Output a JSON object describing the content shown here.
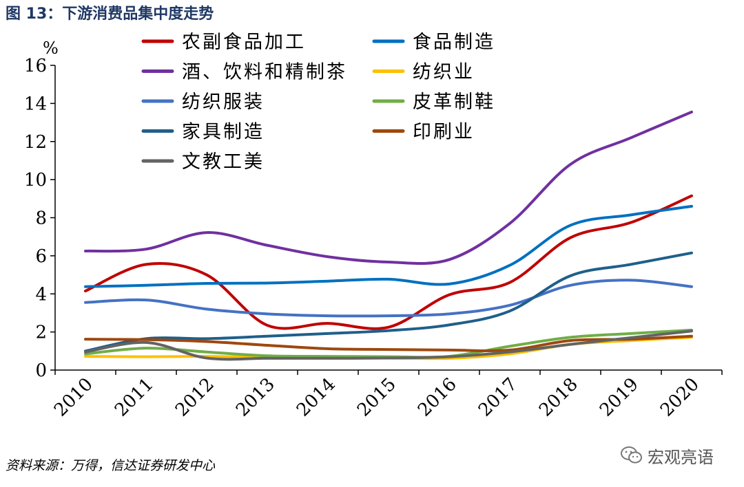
{
  "title": "图 13：下游消费品集中度走势",
  "source": "资料来源：万得，信达证券研发中心",
  "watermark": "宏观亮语",
  "chart_data": {
    "type": "line",
    "ylabel": "%",
    "ylim": [
      0,
      16
    ],
    "yticks": [
      0,
      2,
      4,
      6,
      8,
      10,
      12,
      14,
      16
    ],
    "x": [
      "2010",
      "2011",
      "2012",
      "2013",
      "2014",
      "2015",
      "2016",
      "2017",
      "2018",
      "2019",
      "2020"
    ],
    "grid": false,
    "legend_position": "top",
    "series": [
      {
        "name": "农副食品加工",
        "color": "#c00000",
        "values": [
          4.15,
          5.55,
          5.0,
          2.35,
          2.45,
          2.25,
          3.95,
          4.6,
          6.95,
          7.75,
          9.15
        ]
      },
      {
        "name": "食品制造",
        "color": "#0070c0",
        "values": [
          4.38,
          4.45,
          4.55,
          4.57,
          4.67,
          4.77,
          4.52,
          5.5,
          7.6,
          8.15,
          8.6
        ]
      },
      {
        "name": "酒、饮料和精制茶",
        "color": "#7030a0",
        "values": [
          6.25,
          6.35,
          7.22,
          6.55,
          5.95,
          5.67,
          5.8,
          7.7,
          10.8,
          12.2,
          13.55
        ]
      },
      {
        "name": "纺织业",
        "color": "#ffc000",
        "values": [
          0.72,
          0.7,
          0.72,
          0.68,
          0.65,
          0.63,
          0.62,
          0.85,
          1.35,
          1.55,
          1.72
        ]
      },
      {
        "name": "纺织服装",
        "color": "#4472c4",
        "values": [
          3.55,
          3.68,
          3.2,
          2.95,
          2.85,
          2.85,
          2.95,
          3.4,
          4.45,
          4.72,
          4.38
        ]
      },
      {
        "name": "皮革制鞋",
        "color": "#70ad47",
        "values": [
          0.85,
          1.15,
          0.95,
          0.75,
          0.72,
          0.7,
          0.72,
          1.25,
          1.72,
          1.92,
          2.1
        ]
      },
      {
        "name": "家具制造",
        "color": "#1f5f8b",
        "values": [
          1.0,
          1.65,
          1.65,
          1.78,
          1.92,
          2.07,
          2.37,
          3.1,
          4.95,
          5.55,
          6.15
        ]
      },
      {
        "name": "印刷业",
        "color": "#9e480e",
        "values": [
          1.62,
          1.6,
          1.5,
          1.3,
          1.12,
          1.08,
          1.05,
          1.05,
          1.55,
          1.62,
          1.78
        ]
      },
      {
        "name": "文教工美",
        "color": "#636363",
        "values": [
          0.95,
          1.45,
          0.63,
          0.62,
          0.62,
          0.63,
          0.7,
          0.95,
          1.35,
          1.7,
          2.05
        ]
      }
    ]
  }
}
